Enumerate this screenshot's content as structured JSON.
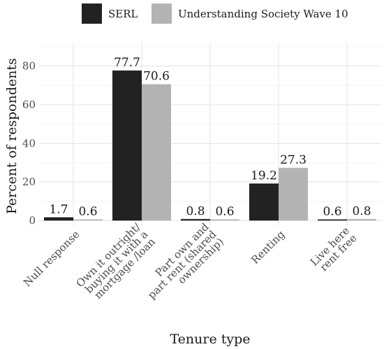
{
  "chart_data": {
    "type": "bar",
    "categories": [
      [
        "Null response"
      ],
      [
        "Own it outright/",
        "buying it with a",
        "mortgage /loan"
      ],
      [
        "Part own and",
        "part rent (shared",
        "ownership)"
      ],
      [
        "Renting"
      ],
      [
        "Live here",
        "rent free"
      ]
    ],
    "series": [
      {
        "name": "SERL",
        "values": [
          1.7,
          77.7,
          0.8,
          19.2,
          0.6
        ],
        "labels": [
          "1.7",
          "77.7",
          "0.8",
          "19.2",
          "0.6"
        ],
        "color": "#222222"
      },
      {
        "name": "Understanding Society Wave 10",
        "values": [
          0.6,
          70.6,
          0.6,
          27.3,
          0.8
        ],
        "labels": [
          "0.6",
          "70.6",
          "0.6",
          "27.3",
          "0.8"
        ],
        "color": "#b3b3b3"
      }
    ],
    "xlabel": "Tenure type",
    "ylabel": "Percent of respondents",
    "ylim": [
      0,
      90
    ],
    "yticks": [
      "0",
      "20",
      "40",
      "60",
      "80"
    ],
    "grid": true,
    "legend": "top"
  }
}
